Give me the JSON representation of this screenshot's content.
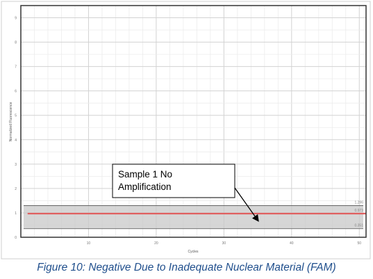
{
  "chart_data": {
    "type": "line",
    "title": "",
    "xlabel": "Cycles",
    "ylabel": "Normalized Fluorescence",
    "xlim": [
      0,
      51
    ],
    "ylim": [
      0,
      9.5
    ],
    "x_ticks": [
      "10",
      "20",
      "30",
      "40",
      "50"
    ],
    "y_ticks": [
      "0",
      "1",
      "2",
      "3",
      "4",
      "5",
      "6",
      "7",
      "8",
      "9"
    ],
    "grid": true,
    "threshold_band": {
      "upper": 1.3,
      "lower": 0.35,
      "color": "#c8c8c8",
      "labels": [
        "1.296",
        "0.351"
      ]
    },
    "series": [
      {
        "color": "#e06060",
        "label": "0.973",
        "x": [
          1,
          51
        ],
        "y": [
          0.97,
          0.97
        ]
      }
    ],
    "annotation": {
      "text_lines": [
        "Sample 1 No",
        "Amplification"
      ],
      "arrow_target": {
        "x": 35,
        "y": 0.7
      }
    }
  },
  "caption": "Figure 10: Negative Due to Inadequate Nuclear Material (FAM)"
}
